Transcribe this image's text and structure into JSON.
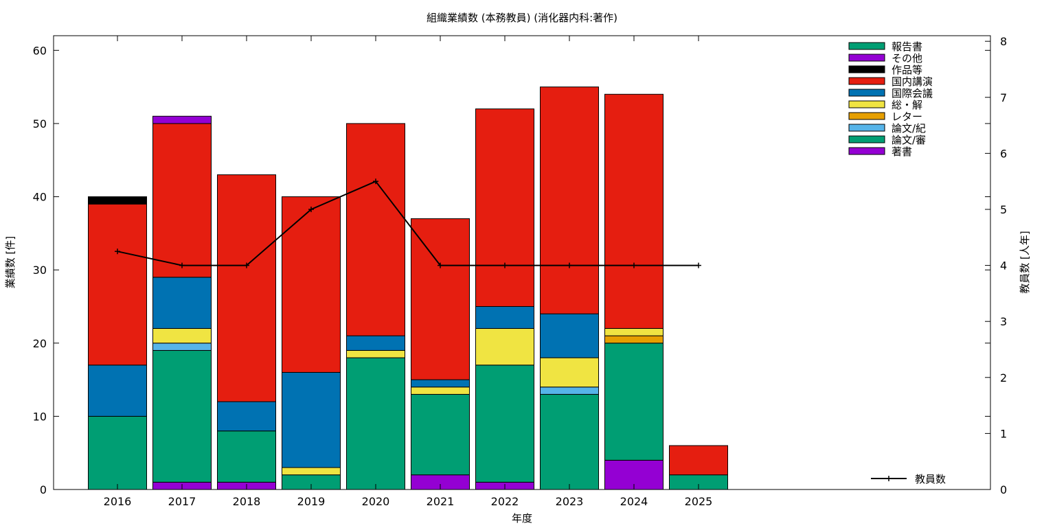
{
  "chart_data": {
    "type": "bar",
    "stacked": true,
    "title": "組織業績数 (本務教員) (消化器内科:著作)",
    "xlabel": "年度",
    "ylabel": "業績数 [件]",
    "y2label": "教員数 [人年]",
    "ylim": [
      0,
      62
    ],
    "y2lim": [
      0,
      8.1
    ],
    "yticks": [
      0,
      10,
      20,
      30,
      40,
      50,
      60
    ],
    "y2ticks": [
      0,
      1,
      2,
      3,
      4,
      5,
      6,
      7,
      8
    ],
    "legend_position": "top-right",
    "grid": false,
    "categories": [
      "2016",
      "2017",
      "2018",
      "2019",
      "2020",
      "2021",
      "2022",
      "2023",
      "2024",
      "2025"
    ],
    "series": [
      {
        "name": "著書",
        "color": "#9400d3",
        "values": [
          0,
          1,
          1,
          0,
          0,
          2,
          1,
          0,
          4,
          0
        ]
      },
      {
        "name": "論文/審",
        "color": "#009e73",
        "values": [
          10,
          18,
          7,
          2,
          18,
          11,
          16,
          13,
          16,
          2
        ]
      },
      {
        "name": "論文/紀",
        "color": "#56b4e9",
        "values": [
          0,
          1,
          0,
          0,
          0,
          0,
          0,
          1,
          0,
          0
        ]
      },
      {
        "name": "レター",
        "color": "#e69f00",
        "values": [
          0,
          0,
          0,
          0,
          0,
          0,
          0,
          0,
          1,
          0
        ]
      },
      {
        "name": "総・解",
        "color": "#f0e442",
        "values": [
          0,
          2,
          0,
          1,
          1,
          1,
          5,
          4,
          1,
          0
        ]
      },
      {
        "name": "国際会議",
        "color": "#0072b2",
        "values": [
          7,
          7,
          4,
          13,
          2,
          1,
          3,
          6,
          0,
          0
        ]
      },
      {
        "name": "国内講演",
        "color": "#e51e10",
        "values": [
          22,
          21,
          31,
          24,
          29,
          22,
          27,
          31,
          32,
          4
        ]
      },
      {
        "name": "作品等",
        "color": "#000000",
        "values": [
          1,
          0,
          0,
          0,
          0,
          0,
          0,
          0,
          0,
          0
        ]
      },
      {
        "name": "その他",
        "color": "#9400d3",
        "values": [
          0,
          1,
          0,
          0,
          0,
          0,
          0,
          0,
          0,
          0
        ]
      },
      {
        "name": "報告書",
        "color": "#009e73",
        "values": [
          0,
          0,
          0,
          0,
          0,
          0,
          0,
          0,
          0,
          0
        ]
      }
    ],
    "line_series": {
      "name": "教員数",
      "axis": "y2",
      "color": "#000000",
      "values": [
        4.25,
        4,
        4,
        5,
        5.5,
        4,
        4,
        4,
        4,
        4
      ]
    }
  }
}
